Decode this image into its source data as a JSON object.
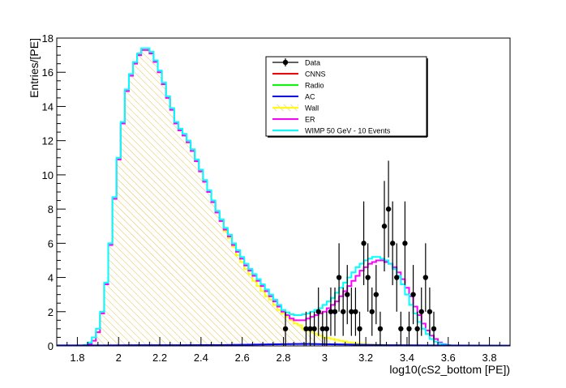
{
  "chart_data": {
    "type": "line",
    "title": "",
    "xlabel": "log10(cS2_bottom [PE])",
    "ylabel": "Entries/[PE]",
    "xlim": [
      1.7,
      3.9
    ],
    "ylim": [
      0,
      18
    ],
    "grid": false,
    "legend_placement": "top-right",
    "x_ticks": [
      "1.8",
      "2",
      "2.2",
      "2.4",
      "2.6",
      "2.8",
      "3",
      "3.2",
      "3.4",
      "3.6",
      "3.8"
    ],
    "x_tick_values": [
      1.8,
      2.0,
      2.2,
      2.4,
      2.6,
      2.8,
      3.0,
      3.2,
      3.4,
      3.6,
      3.8
    ],
    "y_ticks": [
      "0",
      "2",
      "4",
      "6",
      "8",
      "10",
      "12",
      "14",
      "16",
      "18"
    ],
    "y_tick_values": [
      0,
      2,
      4,
      6,
      8,
      10,
      12,
      14,
      16,
      18
    ],
    "legend": [
      {
        "name": "Data",
        "color": "#000000",
        "style": "marker"
      },
      {
        "name": "CNNS",
        "color": "#ff0000",
        "style": "line"
      },
      {
        "name": "Radio",
        "color": "#00ff00",
        "style": "line"
      },
      {
        "name": "AC",
        "color": "#0000ff",
        "style": "line"
      },
      {
        "name": "Wall",
        "color": "#ffff00",
        "style": "hatch"
      },
      {
        "name": "ER",
        "color": "#ff00ff",
        "style": "line"
      },
      {
        "name": "WIMP 50 GeV - 10 Events",
        "color": "#00ffff",
        "style": "line"
      }
    ],
    "wall": {
      "color": "#ffff00",
      "x": [
        1.86,
        1.88,
        1.9,
        1.92,
        1.94,
        1.96,
        1.98,
        2.0,
        2.02,
        2.04,
        2.06,
        2.08,
        2.1,
        2.12,
        2.14,
        2.16,
        2.18,
        2.2,
        2.22,
        2.24,
        2.26,
        2.28,
        2.3,
        2.32,
        2.34,
        2.36,
        2.38,
        2.4,
        2.42,
        2.44,
        2.46,
        2.48,
        2.5,
        2.52,
        2.54,
        2.56,
        2.58,
        2.6,
        2.62,
        2.64,
        2.66,
        2.68,
        2.7,
        2.72,
        2.74,
        2.76,
        2.78,
        2.8,
        2.82,
        2.84,
        2.86,
        2.88,
        2.9,
        2.92,
        2.94,
        2.96,
        2.98,
        3.0,
        3.02,
        3.04,
        3.06,
        3.08,
        3.1,
        3.12,
        3.14,
        3.16,
        3.18,
        3.2,
        3.22,
        3.24,
        3.26,
        3.28,
        3.3,
        3.32,
        3.34,
        3.36,
        3.38,
        3.4,
        3.42,
        3.44,
        3.46,
        3.48,
        3.5,
        3.52,
        3.54,
        3.56
      ],
      "values": [
        0.1,
        0.3,
        0.8,
        1.9,
        3.6,
        5.9,
        8.6,
        10.9,
        13.0,
        14.9,
        15.8,
        16.5,
        17.0,
        17.3,
        17.3,
        17.1,
        16.6,
        16.0,
        15.3,
        14.5,
        13.8,
        13.0,
        12.6,
        12.3,
        11.9,
        11.4,
        10.8,
        10.2,
        9.6,
        9.0,
        8.4,
        7.8,
        7.3,
        6.7,
        6.3,
        5.8,
        5.3,
        4.9,
        4.5,
        4.2,
        3.8,
        3.5,
        3.2,
        2.9,
        2.7,
        2.4,
        2.1,
        1.9,
        1.7,
        1.5,
        1.3,
        1.2,
        1.0,
        0.9,
        0.8,
        0.7,
        0.6,
        0.5,
        0.45,
        0.4,
        0.35,
        0.3,
        0.25,
        0.2,
        0.18,
        0.15,
        0.13,
        0.11,
        0.1,
        0.09,
        0.08,
        0.07,
        0.06,
        0.05,
        0.05,
        0.04,
        0.04,
        0.03,
        0.03,
        0.02,
        0.02,
        0.02,
        0.01,
        0.01,
        0.01,
        0.0
      ]
    },
    "series": [
      {
        "name": "ER",
        "color": "#ff00ff",
        "x": [
          1.86,
          1.88,
          1.9,
          1.92,
          1.94,
          1.96,
          1.98,
          2.0,
          2.02,
          2.04,
          2.06,
          2.08,
          2.1,
          2.12,
          2.14,
          2.16,
          2.18,
          2.2,
          2.22,
          2.24,
          2.26,
          2.28,
          2.3,
          2.32,
          2.34,
          2.36,
          2.38,
          2.4,
          2.42,
          2.44,
          2.46,
          2.48,
          2.5,
          2.52,
          2.54,
          2.56,
          2.58,
          2.6,
          2.62,
          2.64,
          2.66,
          2.68,
          2.7,
          2.72,
          2.74,
          2.76,
          2.78,
          2.8,
          2.82,
          2.84,
          2.86,
          2.88,
          2.9,
          2.92,
          2.94,
          2.96,
          2.98,
          3.0,
          3.02,
          3.04,
          3.06,
          3.08,
          3.1,
          3.12,
          3.14,
          3.16,
          3.18,
          3.2,
          3.22,
          3.24,
          3.26,
          3.28,
          3.3,
          3.32,
          3.34,
          3.36,
          3.38,
          3.4,
          3.42,
          3.44,
          3.46,
          3.48,
          3.5,
          3.52,
          3.54,
          3.56,
          3.58,
          3.6
        ],
        "values": [
          0.1,
          0.3,
          0.8,
          1.9,
          3.6,
          5.9,
          8.6,
          10.9,
          13.0,
          14.9,
          15.8,
          16.5,
          17.0,
          17.3,
          17.3,
          17.1,
          16.6,
          16.0,
          15.3,
          14.5,
          13.8,
          13.0,
          12.6,
          12.3,
          11.9,
          11.4,
          10.8,
          10.2,
          9.6,
          9.0,
          8.4,
          7.8,
          7.3,
          6.8,
          6.4,
          5.9,
          5.5,
          5.1,
          4.7,
          4.4,
          4.1,
          3.8,
          3.5,
          3.2,
          2.9,
          2.6,
          2.3,
          2.0,
          1.8,
          1.6,
          1.5,
          1.5,
          1.5,
          1.6,
          1.7,
          1.8,
          1.9,
          2.0,
          2.2,
          2.4,
          2.6,
          2.9,
          3.2,
          3.5,
          3.8,
          4.1,
          4.4,
          4.6,
          4.8,
          4.9,
          5.0,
          5.0,
          4.9,
          4.8,
          4.6,
          4.3,
          3.9,
          3.4,
          2.9,
          2.3,
          1.8,
          1.3,
          0.9,
          0.6,
          0.4,
          0.2,
          0.1,
          0.05
        ]
      },
      {
        "name": "WIMP 50 GeV - 10 Events",
        "color": "#00ffff",
        "x": [
          1.84,
          1.86,
          1.88,
          1.9,
          1.92,
          1.94,
          1.96,
          1.98,
          2.0,
          2.02,
          2.04,
          2.06,
          2.08,
          2.1,
          2.12,
          2.14,
          2.16,
          2.18,
          2.2,
          2.22,
          2.24,
          2.26,
          2.28,
          2.3,
          2.32,
          2.34,
          2.36,
          2.38,
          2.4,
          2.42,
          2.44,
          2.46,
          2.48,
          2.5,
          2.52,
          2.54,
          2.56,
          2.58,
          2.6,
          2.62,
          2.64,
          2.66,
          2.68,
          2.7,
          2.72,
          2.74,
          2.76,
          2.78,
          2.8,
          2.82,
          2.84,
          2.86,
          2.88,
          2.9,
          2.92,
          2.94,
          2.96,
          2.98,
          3.0,
          3.02,
          3.04,
          3.06,
          3.08,
          3.1,
          3.12,
          3.14,
          3.16,
          3.18,
          3.2,
          3.22,
          3.24,
          3.26,
          3.28,
          3.3,
          3.32,
          3.34,
          3.36,
          3.38,
          3.4,
          3.42,
          3.44,
          3.46,
          3.48,
          3.5,
          3.52,
          3.54,
          3.56,
          3.58,
          3.6,
          3.62,
          3.64,
          3.66,
          3.68
        ],
        "values": [
          0.05,
          0.2,
          0.5,
          1.0,
          2.0,
          3.7,
          6.0,
          8.7,
          11.0,
          13.1,
          15.0,
          15.9,
          16.6,
          17.1,
          17.4,
          17.4,
          17.2,
          16.7,
          16.1,
          15.4,
          14.6,
          13.9,
          13.1,
          12.7,
          12.4,
          12.0,
          11.5,
          10.9,
          10.3,
          9.7,
          9.1,
          8.5,
          7.9,
          7.4,
          6.9,
          6.5,
          6.0,
          5.6,
          5.2,
          4.8,
          4.5,
          4.2,
          3.9,
          3.6,
          3.3,
          3.0,
          2.7,
          2.4,
          2.1,
          1.95,
          1.85,
          1.8,
          1.8,
          1.85,
          1.9,
          2.0,
          2.1,
          2.2,
          2.4,
          2.6,
          2.8,
          3.1,
          3.4,
          3.7,
          4.0,
          4.3,
          4.6,
          4.8,
          5.0,
          5.1,
          5.2,
          5.2,
          5.1,
          5.0,
          4.8,
          4.5,
          4.1,
          3.6,
          3.0,
          2.4,
          1.9,
          1.4,
          1.0,
          0.7,
          0.4,
          0.25,
          0.15,
          0.08,
          0.04,
          0.02,
          0.01,
          0.0,
          0.0
        ]
      },
      {
        "name": "AC",
        "color": "#0000ff",
        "x": [
          1.7,
          1.9,
          2.1,
          2.3,
          2.5,
          2.7,
          2.8,
          2.9,
          3.0,
          3.1,
          3.2,
          3.3,
          3.5,
          3.9
        ],
        "values": [
          0.03,
          0.03,
          0.04,
          0.04,
          0.05,
          0.08,
          0.1,
          0.12,
          0.1,
          0.08,
          0.06,
          0.04,
          0.03,
          0.02
        ]
      }
    ],
    "data_points": {
      "name": "Data",
      "x": [
        2.81,
        2.83,
        2.85,
        2.87,
        2.89,
        2.91,
        2.93,
        2.95,
        2.97,
        2.99,
        3.01,
        3.03,
        3.05,
        3.07,
        3.09,
        3.11,
        3.13,
        3.15,
        3.17,
        3.19,
        3.21,
        3.23,
        3.25,
        3.27,
        3.29,
        3.31,
        3.33,
        3.35,
        3.37,
        3.39,
        3.41,
        3.43,
        3.45,
        3.47,
        3.49,
        3.51,
        3.53,
        3.55
      ],
      "values": [
        1,
        0,
        0,
        0,
        0,
        1,
        1,
        1,
        2,
        1,
        1,
        2,
        2,
        4,
        2,
        3,
        2,
        2,
        1,
        6,
        4,
        2,
        3,
        1,
        7,
        8,
        6,
        4,
        1,
        6,
        1,
        3,
        1,
        2,
        4,
        2,
        1,
        0
      ]
    },
    "labels": {
      "ylabel": "Entries/[PE]",
      "xlabel": "log10(cS2_bottom [PE])"
    }
  }
}
